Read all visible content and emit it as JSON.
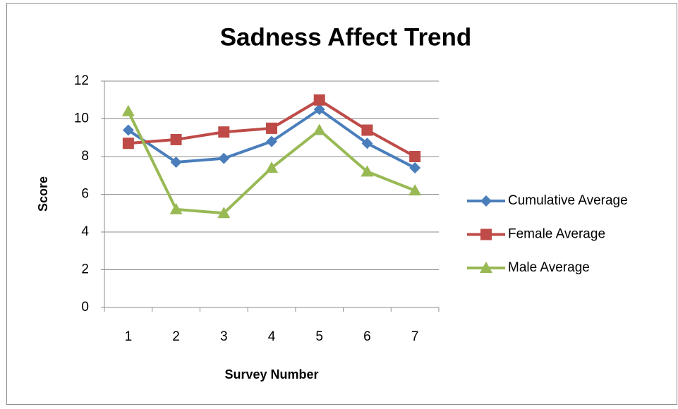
{
  "chart_data": {
    "type": "line",
    "title": "Sadness Affect Trend",
    "x_label": "Survey Number",
    "y_label": "Score",
    "categories": [
      "1",
      "2",
      "3",
      "4",
      "5",
      "6",
      "7"
    ],
    "series": [
      {
        "name": "Cumulative Average",
        "color": "#4a7ebb",
        "marker": "diamond",
        "values": [
          9.4,
          7.7,
          7.9,
          8.8,
          10.5,
          8.7,
          7.4
        ]
      },
      {
        "name": "Female Average",
        "color": "#be4b48",
        "marker": "square",
        "values": [
          8.7,
          8.9,
          9.3,
          9.5,
          11,
          9.4,
          8.0
        ]
      },
      {
        "name": "Male Average",
        "color": "#98b954",
        "marker": "triangle",
        "values": [
          10.4,
          5.2,
          5.0,
          7.4,
          9.4,
          7.2,
          6.2
        ]
      }
    ],
    "ylim": [
      0,
      12
    ],
    "yticks": [
      0,
      2,
      4,
      6,
      8,
      10,
      12
    ],
    "grid": true,
    "legend": "right"
  }
}
